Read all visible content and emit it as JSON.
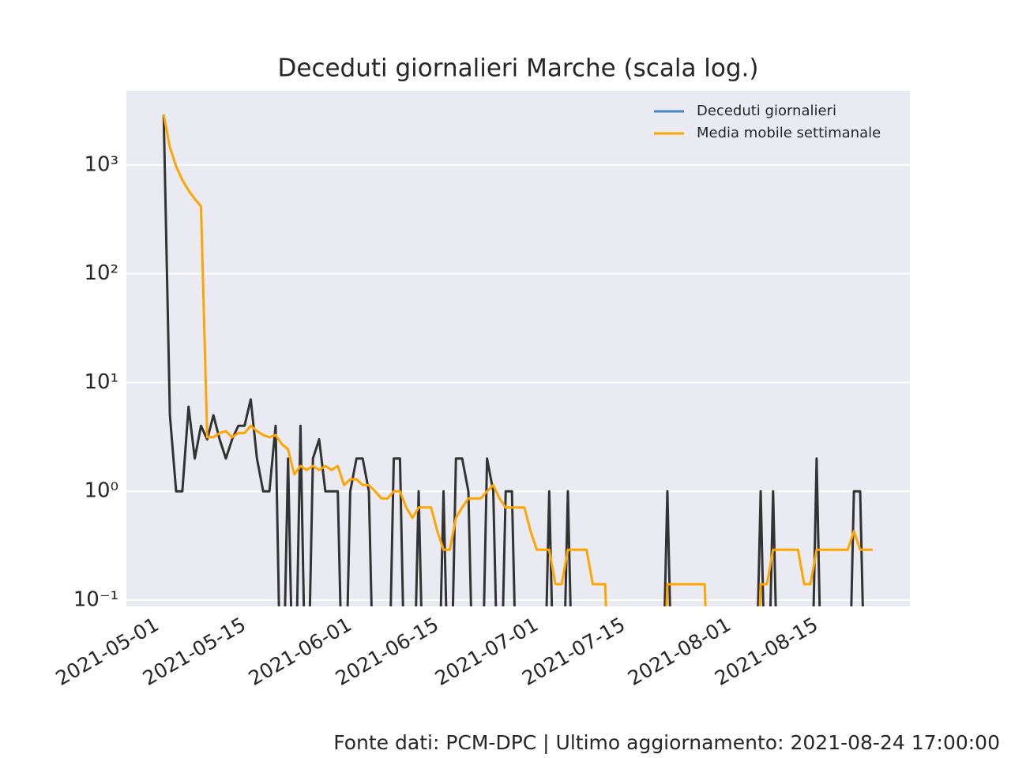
{
  "chart_data": {
    "type": "line",
    "title": "Deceduti giornalieri Marche (scala log.)",
    "footer": "Fonte dati: PCM-DPC | Ultimo aggiornamento: 2021-08-24 17:00:00",
    "x": [
      "2021-05-02",
      "2021-05-03",
      "2021-05-04",
      "2021-05-05",
      "2021-05-06",
      "2021-05-07",
      "2021-05-08",
      "2021-05-09",
      "2021-05-10",
      "2021-05-11",
      "2021-05-12",
      "2021-05-13",
      "2021-05-14",
      "2021-05-15",
      "2021-05-16",
      "2021-05-17",
      "2021-05-18",
      "2021-05-19",
      "2021-05-20",
      "2021-05-21",
      "2021-05-22",
      "2021-05-23",
      "2021-05-24",
      "2021-05-25",
      "2021-05-26",
      "2021-05-27",
      "2021-05-28",
      "2021-05-29",
      "2021-05-30",
      "2021-05-31",
      "2021-06-01",
      "2021-06-02",
      "2021-06-03",
      "2021-06-04",
      "2021-06-05",
      "2021-06-06",
      "2021-06-07",
      "2021-06-08",
      "2021-06-09",
      "2021-06-10",
      "2021-06-11",
      "2021-06-12",
      "2021-06-13",
      "2021-06-14",
      "2021-06-15",
      "2021-06-16",
      "2021-06-17",
      "2021-06-18",
      "2021-06-19",
      "2021-06-20",
      "2021-06-21",
      "2021-06-22",
      "2021-06-23",
      "2021-06-24",
      "2021-06-25",
      "2021-06-26",
      "2021-06-27",
      "2021-06-28",
      "2021-06-29",
      "2021-06-30",
      "2021-07-01",
      "2021-07-02",
      "2021-07-03",
      "2021-07-04",
      "2021-07-05",
      "2021-07-06",
      "2021-07-07",
      "2021-07-08",
      "2021-07-09",
      "2021-07-10",
      "2021-07-11",
      "2021-07-12",
      "2021-07-13",
      "2021-07-14",
      "2021-07-15",
      "2021-07-16",
      "2021-07-17",
      "2021-07-18",
      "2021-07-19",
      "2021-07-20",
      "2021-07-21",
      "2021-07-22",
      "2021-07-23",
      "2021-07-24",
      "2021-07-25",
      "2021-07-26",
      "2021-07-27",
      "2021-07-28",
      "2021-07-29",
      "2021-07-30",
      "2021-07-31",
      "2021-08-01",
      "2021-08-02",
      "2021-08-03",
      "2021-08-04",
      "2021-08-05",
      "2021-08-06",
      "2021-08-07",
      "2021-08-08",
      "2021-08-09",
      "2021-08-10",
      "2021-08-11",
      "2021-08-12",
      "2021-08-13",
      "2021-08-14",
      "2021-08-15",
      "2021-08-16",
      "2021-08-17",
      "2021-08-18",
      "2021-08-19",
      "2021-08-20",
      "2021-08-21",
      "2021-08-22",
      "2021-08-23",
      "2021-08-24"
    ],
    "series": [
      {
        "name": "Deceduti giornalieri",
        "color": "#333333",
        "legend_color": "#4a86c0",
        "values": [
          2900,
          5,
          1,
          1,
          6,
          2,
          4,
          3,
          5,
          3,
          2,
          3,
          4,
          4,
          7,
          2,
          1,
          1,
          4,
          0,
          2,
          0,
          4,
          0,
          2,
          3,
          1,
          1,
          1,
          0,
          1,
          2,
          2,
          1,
          0,
          0,
          0,
          2,
          2,
          0,
          0,
          1,
          0,
          0,
          0,
          1,
          0,
          2,
          2,
          1,
          0,
          0,
          2,
          1,
          0,
          1,
          1,
          0,
          0,
          0,
          0,
          0,
          1,
          0,
          0,
          1,
          0,
          0,
          0,
          0,
          0,
          0,
          0,
          0,
          0,
          0,
          0,
          0,
          0,
          0,
          0,
          1,
          0,
          0,
          0,
          0,
          0,
          0,
          0,
          0,
          0,
          0,
          0,
          0,
          0,
          0,
          1,
          0,
          1,
          0,
          0,
          0,
          0,
          0,
          0,
          2,
          0,
          0,
          0,
          0,
          0,
          1,
          1,
          0,
          0
        ]
      },
      {
        "name": "Media mobile settimanale",
        "color": "#ffa500",
        "legend_color": "#ffa500",
        "values": [
          2900,
          1452.5,
          968.67,
          726.75,
          582.6,
          485.83,
          417,
          3.14,
          3.14,
          3.43,
          3.57,
          3.14,
          3.43,
          3.43,
          4,
          3.57,
          3.29,
          3.14,
          3.29,
          2.71,
          2.43,
          1.43,
          1.71,
          1.57,
          1.71,
          1.57,
          1.71,
          1.57,
          1.71,
          1.14,
          1.29,
          1.29,
          1.14,
          1.14,
          1,
          0.86,
          0.86,
          1,
          1,
          0.71,
          0.57,
          0.71,
          0.71,
          0.71,
          0.43,
          0.29,
          0.29,
          0.57,
          0.71,
          0.86,
          0.86,
          0.86,
          1,
          1.14,
          0.86,
          0.71,
          0.71,
          0.71,
          0.71,
          0.43,
          0.29,
          0.29,
          0.29,
          0.14,
          0.14,
          0.29,
          0.29,
          0.29,
          0.29,
          0.14,
          0.14,
          0.14,
          0,
          0,
          0,
          0,
          0,
          0,
          0,
          0,
          0,
          0.14,
          0.14,
          0.14,
          0.14,
          0.14,
          0.14,
          0.14,
          0,
          0,
          0,
          0,
          0,
          0,
          0,
          0,
          0.14,
          0.14,
          0.29,
          0.29,
          0.29,
          0.29,
          0.29,
          0.14,
          0.14,
          0.29,
          0.29,
          0.29,
          0.29,
          0.29,
          0.29,
          0.43,
          0.29,
          0.29,
          0.29
        ]
      }
    ],
    "xlim": [
      "2021-04-26",
      "2021-08-30"
    ],
    "xticks": [
      "2021-05-01",
      "2021-05-15",
      "2021-06-01",
      "2021-06-15",
      "2021-07-01",
      "2021-07-15",
      "2021-08-01",
      "2021-08-15"
    ],
    "ylim": [
      0.0875,
      4800
    ],
    "yticks": [
      {
        "value": 0.1,
        "label": "10⁻¹"
      },
      {
        "value": 1,
        "label": "10⁰"
      },
      {
        "value": 10,
        "label": "10¹"
      },
      {
        "value": 100,
        "label": "10²"
      },
      {
        "value": 1000,
        "label": "10³"
      }
    ],
    "log_y": true,
    "grid": true,
    "legend": "upper right"
  }
}
